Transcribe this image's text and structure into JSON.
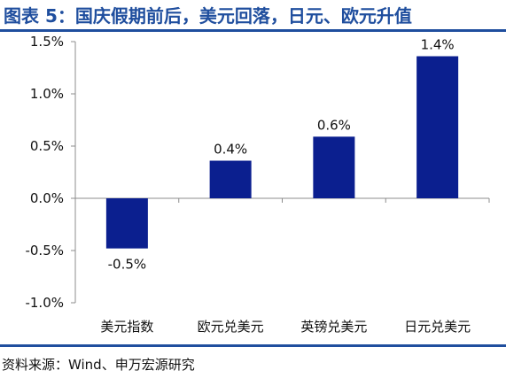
{
  "header": {
    "title": "图表 5：国庆假期前后，美元回落，日元、欧元升值"
  },
  "footer": {
    "source": "资料来源：Wind、申万宏源研究"
  },
  "colors": {
    "accent": "#1f4e9e",
    "bar": "#0b1f8f",
    "axis": "#8c8c8c"
  },
  "chart_data": {
    "type": "bar",
    "title": "图表 5：国庆假期前后，美元回落，日元、欧元升值",
    "xlabel": "",
    "ylabel": "",
    "categories": [
      "美元指数",
      "欧元兑美元",
      "英镑兑美元",
      "日元兑美元"
    ],
    "values": [
      -0.48,
      0.36,
      0.59,
      1.36
    ],
    "data_labels": [
      "-0.5%",
      "0.4%",
      "0.6%",
      "1.4%"
    ],
    "ylim": [
      -1.0,
      1.5
    ],
    "yticks": [
      -1.0,
      -0.5,
      0.0,
      0.5,
      1.0,
      1.5
    ],
    "ytick_labels": [
      "-1.0%",
      "-0.5%",
      "0.0%",
      "0.5%",
      "1.0%",
      "1.5%"
    ],
    "grid": false,
    "legend": "none"
  }
}
